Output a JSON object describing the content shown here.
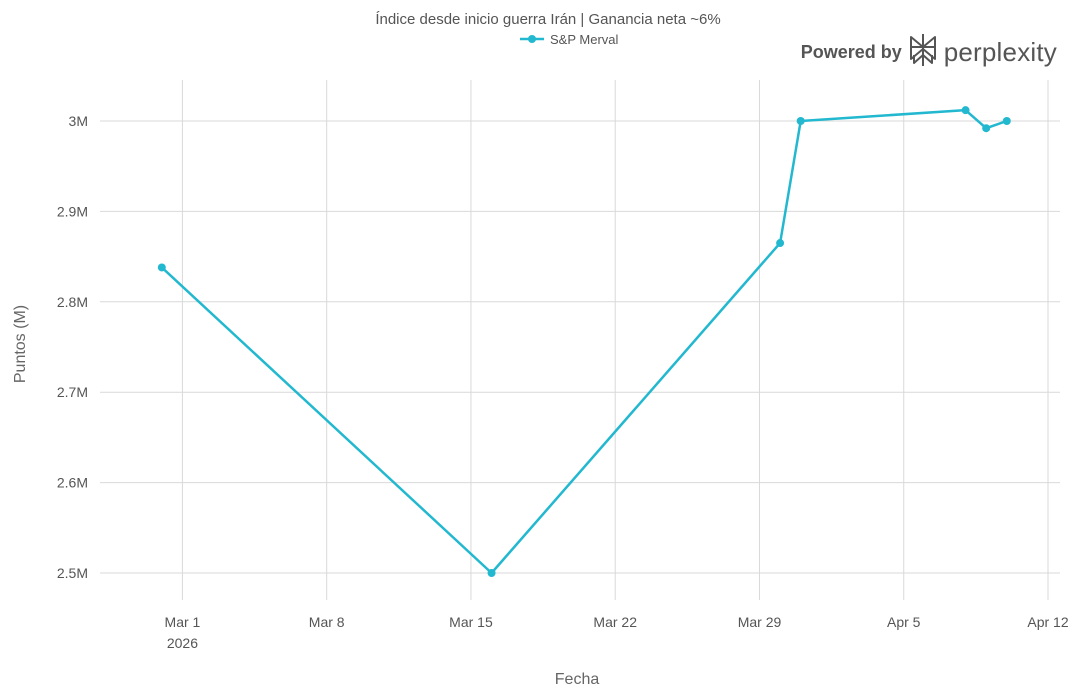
{
  "chart_data": {
    "type": "line",
    "title": "Índice desde inicio guerra Irán | Ganancia neta ~6%",
    "xlabel": "Fecha",
    "ylabel": "Puntos (M)",
    "x_type": "date",
    "x_ticks": [
      {
        "date": "2026-03-01",
        "label": "Mar 1",
        "sublabel": "2026"
      },
      {
        "date": "2026-03-08",
        "label": "Mar 8",
        "sublabel": ""
      },
      {
        "date": "2026-03-15",
        "label": "Mar 15",
        "sublabel": ""
      },
      {
        "date": "2026-03-22",
        "label": "Mar 22",
        "sublabel": ""
      },
      {
        "date": "2026-03-29",
        "label": "Mar 29",
        "sublabel": ""
      },
      {
        "date": "2026-04-05",
        "label": "Apr 5",
        "sublabel": ""
      },
      {
        "date": "2026-04-12",
        "label": "Apr 12",
        "sublabel": ""
      }
    ],
    "y_ticks": [
      {
        "value": 2.5,
        "label": "2.5M"
      },
      {
        "value": 2.6,
        "label": "2.6M"
      },
      {
        "value": 2.7,
        "label": "2.7M"
      },
      {
        "value": 2.8,
        "label": "2.8M"
      },
      {
        "value": 2.9,
        "label": "2.9M"
      },
      {
        "value": 3.0,
        "label": "3M"
      }
    ],
    "xlim": [
      "2026-02-25",
      "2026-04-12"
    ],
    "ylim": [
      2.475,
      3.045
    ],
    "grid": true,
    "legend": "top-center",
    "series": [
      {
        "name": "S&P Merval",
        "color": "#22b8cf",
        "x": [
          "2026-02-28",
          "2026-03-16",
          "2026-03-30",
          "2026-03-31",
          "2026-04-08",
          "2026-04-09",
          "2026-04-10"
        ],
        "y": [
          2.838,
          2.5,
          2.865,
          3.0,
          3.012,
          2.992,
          3.0
        ]
      }
    ]
  },
  "branding": {
    "powered_label": "Powered by",
    "brand_name": "perplexity",
    "logo_icon": "perplexity-logo-icon"
  }
}
